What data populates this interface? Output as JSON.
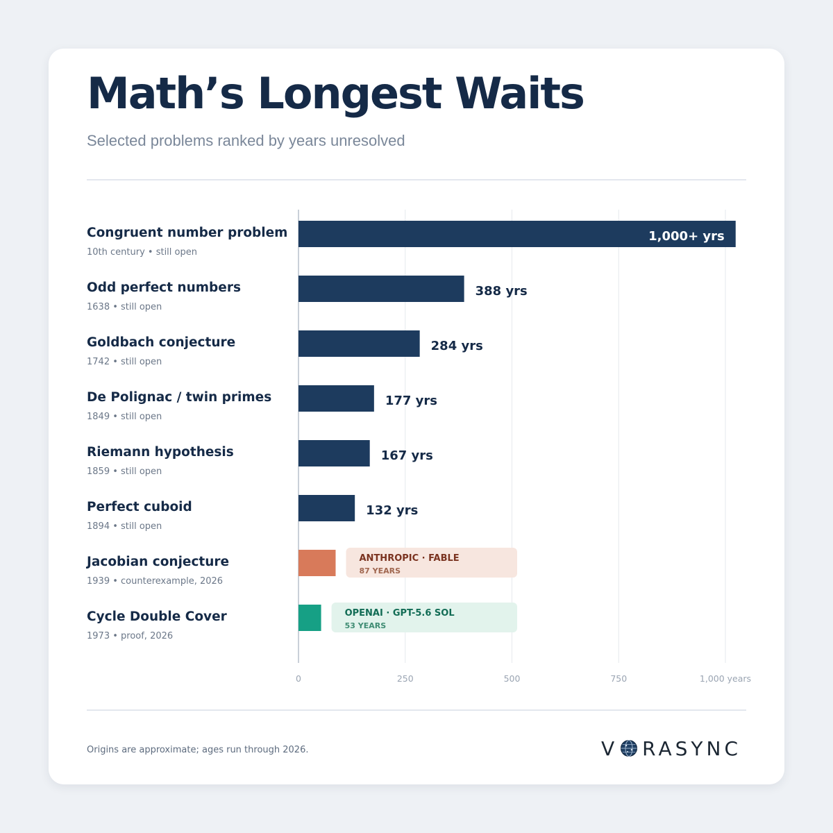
{
  "title": "Math’s Longest Waits",
  "subtitle": "Selected problems ranked by years unresolved",
  "footnote": "Origins are approximate; ages run through 2026.",
  "brand": {
    "prefix": "V",
    "suffix": "RASYNC",
    "mark_icon": "globe-icon"
  },
  "colors": {
    "bar": "#1d3b5e",
    "anthropic_bar": "#d87a5a",
    "anthropic_bg": "#f7e6df",
    "anthropic_text": "#7a3320",
    "anthropic_sub": "#a0664f",
    "openai_bar": "#16a085",
    "openai_bg": "#e2f3ec",
    "openai_text": "#126c55",
    "openai_sub": "#3f8c73",
    "label": "#152a47",
    "meta": "#6b7788",
    "axis_text": "#9aa4b2",
    "grid": "#e6e9ee"
  },
  "chart_data": {
    "type": "bar",
    "orientation": "horizontal",
    "xlim": [
      0,
      1000
    ],
    "grid": true,
    "ticks": [
      {
        "value": 0,
        "label": "0"
      },
      {
        "value": 250,
        "label": "250"
      },
      {
        "value": 500,
        "label": "500"
      },
      {
        "value": 750,
        "label": "750"
      },
      {
        "value": 1000,
        "label": "1,000 years"
      }
    ],
    "rows": [
      {
        "name": "Congruent number problem",
        "meta": "10th century • still open",
        "value": 1026,
        "label": "1,000+ yrs",
        "kind": "open"
      },
      {
        "name": "Odd perfect numbers",
        "meta": "1638 • still open",
        "value": 388,
        "label": "388 yrs",
        "kind": "open"
      },
      {
        "name": "Goldbach conjecture",
        "meta": "1742 • still open",
        "value": 284,
        "label": "284 yrs",
        "kind": "open"
      },
      {
        "name": "De Polignac / twin primes",
        "meta": "1849 • still open",
        "value": 177,
        "label": "177 yrs",
        "kind": "open"
      },
      {
        "name": "Riemann hypothesis",
        "meta": "1859 • still open",
        "value": 167,
        "label": "167 yrs",
        "kind": "open"
      },
      {
        "name": "Perfect cuboid",
        "meta": "1894 • still open",
        "value": 132,
        "label": "132 yrs",
        "kind": "open"
      },
      {
        "name": "Jacobian conjecture",
        "meta": "1939 • counterexample, 2026",
        "value": 87,
        "kind": "anthropic",
        "badge_title": "ANTHROPIC · FABLE",
        "badge_sub": "87 YEARS"
      },
      {
        "name": "Cycle Double Cover",
        "meta": "1973 • proof, 2026",
        "value": 53,
        "kind": "openai",
        "badge_title": "OPENAI · GPT-5.6 SOL",
        "badge_sub": "53 YEARS"
      }
    ]
  }
}
